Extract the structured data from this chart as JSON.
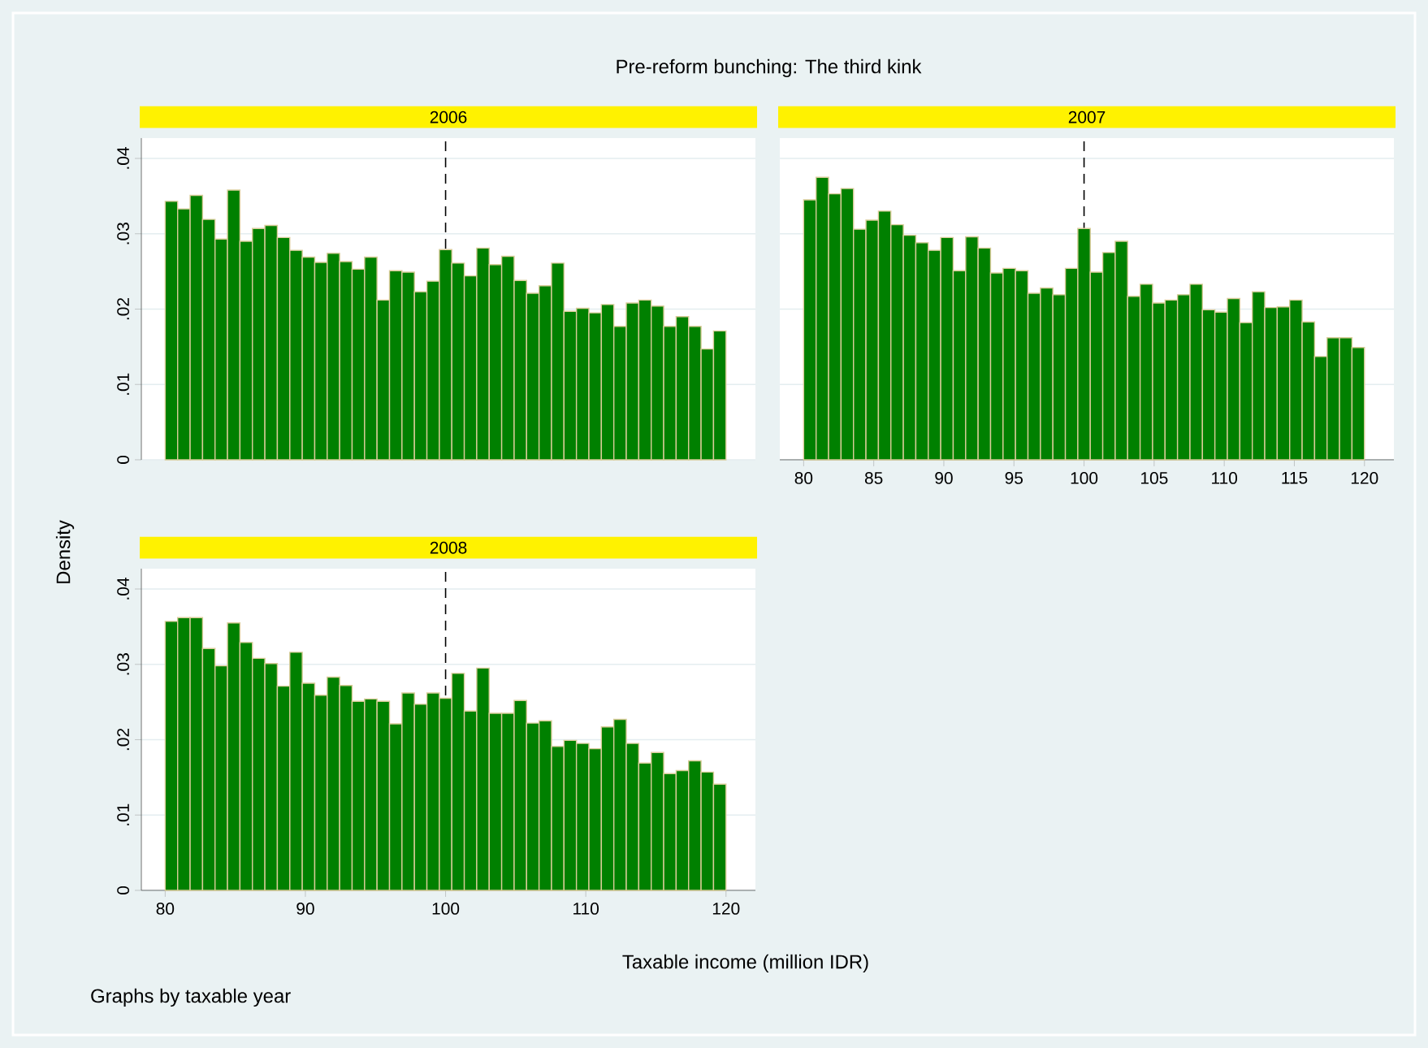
{
  "chart_data": [
    {
      "type": "histogram",
      "title": "2006",
      "ylabel": "Density",
      "annotations": [
        "Pre-reform bunching: The third kink"
      ],
      "color": "#008000",
      "bins": [
        80,
        80.889,
        81.778,
        82.667,
        83.556,
        84.444,
        85.333,
        86.222,
        87.111,
        88,
        88.889,
        89.778,
        90.667,
        91.556,
        92.444,
        93.333,
        94.222,
        95.111,
        96,
        96.889,
        97.778,
        98.667,
        99.556,
        100.444,
        101.333,
        102.222,
        103.111,
        104,
        104.889,
        105.778,
        106.667,
        107.556,
        108.444,
        109.333,
        110.222,
        111.111,
        112,
        112.889,
        113.778,
        114.667,
        115.556,
        116.444,
        117.333,
        118.222,
        119.111,
        120
      ],
      "values": [
        0.0343,
        0.0333,
        0.0351,
        0.0319,
        0.0293,
        0.0358,
        0.029,
        0.0307,
        0.0311,
        0.0295,
        0.0278,
        0.0269,
        0.0262,
        0.0274,
        0.0263,
        0.0253,
        0.0269,
        0.0212,
        0.0251,
        0.0249,
        0.0223,
        0.0237,
        0.0279,
        0.0261,
        0.0244,
        0.0281,
        0.0259,
        0.027,
        0.0238,
        0.0221,
        0.0231,
        0.0261,
        0.0197,
        0.0201,
        0.0195,
        0.0206,
        0.0177,
        0.0208,
        0.0212,
        0.0204,
        0.0177,
        0.019,
        0.0177,
        0.0147,
        0.0171
      ],
      "xlim": [
        78.3,
        122.1
      ],
      "ylim": [
        0,
        0.0427
      ],
      "yticks": [
        0,
        {
          "value": 0.01,
          "label": ".01"
        },
        {
          "value": 0.02,
          "label": ".02"
        },
        {
          "value": 0.03,
          "label": ".03"
        },
        {
          "value": 0.04,
          "label": ".04"
        }
      ],
      "tick_labels": "y",
      "grid": "y",
      "ref_lines": [
        {
          "axis": "x",
          "value": 100,
          "color": "#000000",
          "line_style": "dashed"
        }
      ]
    },
    {
      "type": "histogram",
      "title": "2007",
      "color": "#008000",
      "bins": [
        80,
        80.889,
        81.778,
        82.667,
        83.556,
        84.444,
        85.333,
        86.222,
        87.111,
        88,
        88.889,
        89.778,
        90.667,
        91.556,
        92.444,
        93.333,
        94.222,
        95.111,
        96,
        96.889,
        97.778,
        98.667,
        99.556,
        100.444,
        101.333,
        102.222,
        103.111,
        104,
        104.889,
        105.778,
        106.667,
        107.556,
        108.444,
        109.333,
        110.222,
        111.111,
        112,
        112.889,
        113.778,
        114.667,
        115.556,
        116.444,
        117.333,
        118.222,
        119.111,
        120
      ],
      "values": [
        0.0345,
        0.0375,
        0.0353,
        0.036,
        0.0306,
        0.0318,
        0.033,
        0.0312,
        0.0298,
        0.0288,
        0.0278,
        0.0295,
        0.0251,
        0.0296,
        0.0281,
        0.0248,
        0.0254,
        0.0251,
        0.0221,
        0.0228,
        0.0219,
        0.0254,
        0.0307,
        0.0249,
        0.0275,
        0.029,
        0.0217,
        0.0233,
        0.0208,
        0.0212,
        0.0219,
        0.0233,
        0.0199,
        0.0196,
        0.0214,
        0.0182,
        0.0223,
        0.0202,
        0.0203,
        0.0212,
        0.0183,
        0.0137,
        0.0162,
        0.0162,
        0.0149
      ],
      "xlim": [
        78.3,
        122.1
      ],
      "ylim": [
        0,
        0.0427
      ],
      "xticks": [
        80,
        85,
        90,
        95,
        100,
        105,
        110,
        115,
        120
      ],
      "yticks": [
        {
          "value": 0,
          "label": null
        },
        {
          "value": 0.01,
          "label": null
        },
        {
          "value": 0.02,
          "label": null
        },
        {
          "value": 0.03,
          "label": null
        },
        {
          "value": 0.04,
          "label": null
        }
      ],
      "tick_labels": "x",
      "grid": "y",
      "ref_lines": [
        {
          "axis": "x",
          "value": 100,
          "color": "#000000",
          "line_style": "dashed"
        }
      ]
    },
    {
      "type": "histogram",
      "title": "2008",
      "xlabel": "Taxable income (million IDR)",
      "annotations": [
        "Graphs by taxable year"
      ],
      "color": "#008000",
      "bins": [
        80,
        80.889,
        81.778,
        82.667,
        83.556,
        84.444,
        85.333,
        86.222,
        87.111,
        88,
        88.889,
        89.778,
        90.667,
        91.556,
        92.444,
        93.333,
        94.222,
        95.111,
        96,
        96.889,
        97.778,
        98.667,
        99.556,
        100.444,
        101.333,
        102.222,
        103.111,
        104,
        104.889,
        105.778,
        106.667,
        107.556,
        108.444,
        109.333,
        110.222,
        111.111,
        112,
        112.889,
        113.778,
        114.667,
        115.556,
        116.444,
        117.333,
        118.222,
        119.111,
        120
      ],
      "values": [
        0.0357,
        0.0362,
        0.0362,
        0.0321,
        0.0298,
        0.0355,
        0.0329,
        0.0308,
        0.0301,
        0.0271,
        0.0316,
        0.0275,
        0.0259,
        0.0283,
        0.0272,
        0.0251,
        0.0254,
        0.0251,
        0.0221,
        0.0262,
        0.0247,
        0.0262,
        0.0255,
        0.0288,
        0.0238,
        0.0295,
        0.0235,
        0.0235,
        0.0252,
        0.0222,
        0.0225,
        0.0191,
        0.0199,
        0.0195,
        0.0188,
        0.0217,
        0.0227,
        0.0195,
        0.0169,
        0.0183,
        0.0155,
        0.0159,
        0.0172,
        0.0157,
        0.0141
      ],
      "xlim": [
        78.3,
        122.1
      ],
      "ylim": [
        0,
        0.0427
      ],
      "xticks": [
        80,
        90,
        100,
        110,
        120
      ],
      "yticks": [
        0,
        {
          "value": 0.01,
          "label": ".01"
        },
        {
          "value": 0.02,
          "label": ".02"
        },
        {
          "value": 0.03,
          "label": ".03"
        },
        {
          "value": 0.04,
          "label": ".04"
        }
      ],
      "grid": "y",
      "ref_lines": [
        {
          "axis": "x",
          "value": 100,
          "color": "#000000",
          "line_style": "dashed"
        }
      ]
    }
  ]
}
